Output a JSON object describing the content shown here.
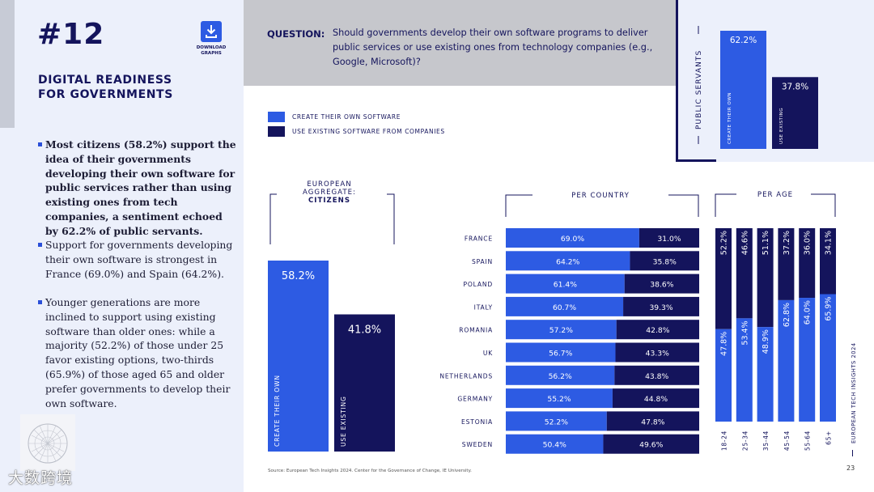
{
  "header": {
    "page_number": "#12",
    "download_label_line1": "DOWNLOAD",
    "download_label_line2": "GRAPHS",
    "section_title_line1": "DIGITAL READINESS",
    "section_title_line2": "FOR GOVERNMENTS"
  },
  "question": {
    "label": "QUESTION:",
    "text": "Should governments develop their own software programs to deliver public services or use existing ones from technology companies (e.g., Google, Microsoft)?"
  },
  "bullets": [
    "Most citizens (58.2%) support the idea of their governments developing their own software for public services rather than using existing ones from tech companies, a sentiment echoed by 62.2% of public servants.",
    "Support for governments developing their own software is strongest in France (69.0%) and Spain (64.2%).",
    "Younger generations are more inclined to support using existing software than older ones: while a majority (52.2%) of those under 25 favor existing options, two-thirds (65.9%) of those aged 65 and older prefer governments to develop their own software."
  ],
  "legend": {
    "create": "CREATE THEIR OWN SOFTWARE",
    "existing": "USE EXISTING SOFTWARE FROM COMPANIES"
  },
  "colors": {
    "create": "#2d5be3",
    "existing": "#14145c",
    "band": "#c6c7cc",
    "panel": "#ecf0fb"
  },
  "source": "Source: European Tech Insights 2024. Center for the Governance of Change, IE University.",
  "side_brand": "EUROPEAN TECH INSIGHTS 2024",
  "footer_page": "23",
  "watermark": "大数跨境",
  "chart_data": [
    {
      "type": "bar",
      "title": "PUBLIC SERVANTS",
      "categories": [
        "CREATE THEIR OWN",
        "USE EXISTING"
      ],
      "values": [
        62.2,
        37.8
      ],
      "labels": [
        "62.2%",
        "37.8%"
      ]
    },
    {
      "type": "bar",
      "title_line1": "EUROPEAN",
      "title_line2": "AGGREGATE:",
      "title_line3": "CITIZENS",
      "categories": [
        "CREATE THEIR OWN",
        "USE EXISTING"
      ],
      "values": [
        58.2,
        41.8
      ],
      "labels": [
        "58.2%",
        "41.8%"
      ]
    },
    {
      "type": "bar",
      "title": "PER COUNTRY",
      "orientation": "horizontal",
      "stacked": true,
      "categories": [
        "FRANCE",
        "SPAIN",
        "POLAND",
        "ITALY",
        "ROMANIA",
        "UK",
        "NETHERLANDS",
        "GERMANY",
        "ESTONIA",
        "SWEDEN"
      ],
      "series": [
        {
          "values": [
            69.0,
            64.2,
            61.4,
            60.7,
            57.2,
            56.7,
            56.2,
            55.2,
            52.2,
            50.4
          ],
          "labels": [
            "69.0%",
            "64.2%",
            "61.4%",
            "60.7%",
            "57.2%",
            "56.7%",
            "56.2%",
            "55.2%",
            "52.2%",
            "50.4%"
          ]
        },
        {
          "values": [
            31.0,
            35.8,
            38.6,
            39.3,
            42.8,
            43.3,
            43.8,
            44.8,
            47.8,
            49.6
          ],
          "labels": [
            "31.0%",
            "35.8%",
            "38.6%",
            "39.3%",
            "42.8%",
            "43.3%",
            "43.8%",
            "44.8%",
            "47.8%",
            "49.6%"
          ]
        }
      ]
    },
    {
      "type": "bar",
      "title": "PER AGE",
      "orientation": "vertical",
      "stacked": true,
      "categories": [
        "18-24",
        "25-34",
        "35-44",
        "45-54",
        "55-64",
        "65+"
      ],
      "series": [
        {
          "values": [
            47.8,
            53.4,
            48.9,
            62.8,
            64.0,
            65.9
          ],
          "labels": [
            "47.8%",
            "53.4%",
            "48.9%",
            "62.8%",
            "64.0%",
            "65.9%"
          ]
        },
        {
          "values": [
            52.2,
            46.6,
            51.1,
            37.2,
            36.0,
            34.1
          ],
          "labels": [
            "52.2%",
            "46.6%",
            "51.1%",
            "37.2%",
            "36.0%",
            "34.1%"
          ]
        }
      ]
    }
  ]
}
